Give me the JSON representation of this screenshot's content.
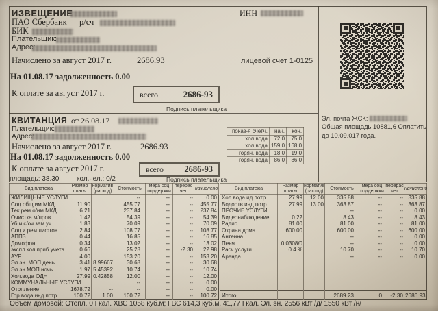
{
  "notice": {
    "title": "ИЗВЕЩЕНИЕ",
    "inn_label": "ИНН",
    "bank_name": "ПАО Сбербанк",
    "account_label": "р/сч",
    "bik_label": "БИК",
    "payer_label": "Плательщик:",
    "address_label": "Адрес:",
    "accrued_label": "Начислено за август 2017 г.",
    "accrued_value": "2686.93",
    "debt_line": "На 01.08.17 задолженность 0.00",
    "due_label": "К оплате за август 2017 г.",
    "total_label": "всего",
    "total_value": "2686-93",
    "signature_label": "Подпись плательщика",
    "personal_account": "лицевой счет 1-0125"
  },
  "receipt": {
    "title": "КВИТАНЦИЯ",
    "date_label": "от 26.08.17",
    "payer_label": "Плательщик:",
    "address_label": "Адрес:",
    "accrued_label": "Начислено за август 2017 г.",
    "accrued_value": "2686.93",
    "debt_line": "На 01.08.17 задолженность 0.00",
    "due_label": "К оплате за август 2017 г.",
    "total_label": "всего",
    "total_value": "2686-93",
    "signature_label": "Подпись плательщика",
    "area_label": "площадь:",
    "area_value": "38.30",
    "people_label": "кол.чел.:",
    "people_value": "0/2"
  },
  "meters": {
    "headers": [
      "показ-я счетч.",
      "нач.",
      "кон."
    ],
    "rows": [
      [
        "хол.вода",
        "72.0",
        "75.0"
      ],
      [
        "хол.вода",
        "159.0",
        "168.0"
      ],
      [
        "горяч. вода",
        "18.0",
        "19.0"
      ],
      [
        "горяч. вода",
        "86.0",
        "86.0"
      ]
    ]
  },
  "side_info": {
    "email_label": "Эл. почта ЖСК:",
    "area_line": "Общая площадь 10881,6 Оплатить до 10.09.017 года."
  },
  "charges": {
    "headers": [
      "Вид платежа",
      "Размер платы",
      "норматив (расход)",
      "Стоимость",
      "мера соц поддержки",
      "перерас чет",
      "начислено"
    ],
    "left_rows": [
      [
        "ЖИЛИЩНЫЕ УСЛУГИ",
        "",
        "",
        "--",
        "--",
        "--",
        "0.00"
      ],
      [
        "Сод.общ.им.МКД",
        "11.90",
        "",
        "455.77",
        "--",
        "--",
        "455.77"
      ],
      [
        "Тек.рем.о/им.МКД",
        "6.21",
        "",
        "237.84",
        "--",
        "--",
        "237.84"
      ],
      [
        "Очистка м/пров.",
        "1.42",
        "",
        "54.39",
        "--",
        "--",
        "54.39"
      ],
      [
        "Уб.и с/оч.зем.уч.",
        "1.83",
        "",
        "70.09",
        "--",
        "--",
        "70.09"
      ],
      [
        "Сод.и рем.лифтов",
        "2.84",
        "",
        "108.77",
        "--",
        "--",
        "108.77"
      ],
      [
        "АППЗ",
        "0.44",
        "",
        "16.85",
        "--",
        "--",
        "16.85"
      ],
      [
        "Домофон",
        "0.34",
        "",
        "13.02",
        "--",
        "--",
        "13.02"
      ],
      [
        "экспл.кол.приб.учета",
        "0.66",
        "",
        "25.28",
        "--",
        "-2.30",
        "22.98"
      ],
      [
        "АУР",
        "4.00",
        "",
        "153.20",
        "--",
        "--",
        "153.20"
      ],
      [
        "Эл.эн. МОП день",
        "3.41",
        "8.99667",
        "30.68",
        "--",
        "--",
        "30.68"
      ],
      [
        "Эл.эн.МОП ночь",
        "1.97",
        "5.45392",
        "10.74",
        "--",
        "--",
        "10.74"
      ],
      [
        "Хол.вода ОДН",
        "27.99",
        "0.42858",
        "12.00",
        "--",
        "--",
        "12.00"
      ],
      [
        "КОММУНАЛЬНЫЕ УСЛУГИ",
        "",
        "",
        "--",
        "--",
        "--",
        "0.00"
      ],
      [
        "Отопление",
        "1678.72",
        "--",
        "--",
        "--",
        "--",
        "0.00"
      ],
      [
        "Гор.вода инд.потр.",
        "100.72",
        "1.00",
        "100.72",
        "--",
        "--",
        "100.72"
      ]
    ],
    "right_rows": [
      [
        "Хол.вода ид.потр.",
        "27.99",
        "12.00",
        "335.88",
        "--",
        "--",
        "335.88"
      ],
      [
        "Водоотв.инд.потр.",
        "27.99",
        "13.00",
        "363.87",
        "--",
        "--",
        "363.87"
      ],
      [
        "ПРОЧИЕ УСЛУГИ",
        "",
        "",
        "--",
        "--",
        "--",
        "0.00"
      ],
      [
        "Видеонаблюдение",
        "0.22",
        "",
        "8.43",
        "--",
        "--",
        "8.43"
      ],
      [
        "Радио",
        "81.00",
        "",
        "81.00",
        "--",
        "--",
        "81.00"
      ],
      [
        "Охрана дома",
        "600.00",
        "",
        "600.00",
        "--",
        "--",
        "600.00"
      ],
      [
        "Антенна",
        "",
        "",
        "--",
        "--",
        "--",
        "0.00"
      ],
      [
        "Пеня",
        "0.0308/0",
        "",
        "--",
        "--",
        "--",
        "0.00"
      ],
      [
        "Расч.услуги",
        "0.4 %",
        "",
        "10.70",
        "--",
        "--",
        "10.70"
      ],
      [
        "Аренда",
        "",
        "",
        "--",
        "--",
        "--",
        "0.00"
      ]
    ],
    "totals": [
      "Итого",
      "",
      "",
      "2689.23",
      "0",
      "-2.30",
      "2686.93"
    ],
    "volume_line": "Объем домовой: Отопл. 0 Гкал. ХВС 1058 куб.м; ГВС 614,3 куб.м, 41,77 Гкал. Эл. эн. 2556 кВт /д/  1550 кВт /н/"
  }
}
